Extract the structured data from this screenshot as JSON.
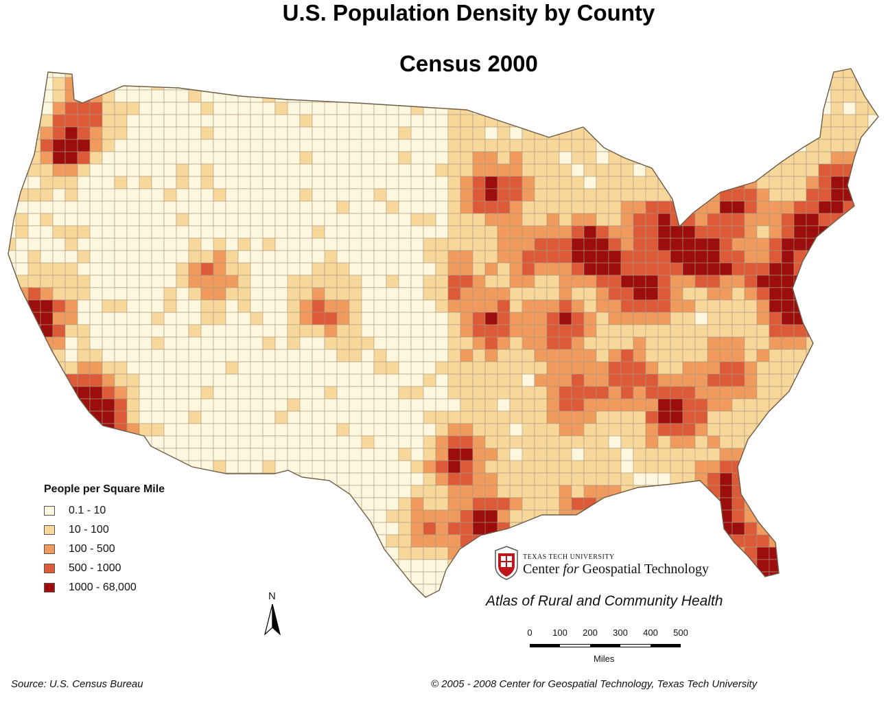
{
  "title": "U.S. Population Density by County",
  "subtitle": "Census 2000",
  "legend": {
    "title": "People per Square Mile",
    "items": [
      {
        "label": "0.1 - 10",
        "color": "#fdf7df"
      },
      {
        "label": "10 - 100",
        "color": "#f7d79a"
      },
      {
        "label": "100 - 500",
        "color": "#f09a5d"
      },
      {
        "label": "500 - 1000",
        "color": "#dc5a37"
      },
      {
        "label": "1000 - 68,000",
        "color": "#9c0e0e"
      }
    ]
  },
  "logo": {
    "university": "TEXAS TECH UNIVERSITY",
    "center_prefix": "Center",
    "center_for": "for",
    "center_suffix": "Geospatial Technology"
  },
  "atlas": "Atlas of Rural and Community Health",
  "scale_bar": {
    "labels": [
      "0",
      "100",
      "200",
      "300",
      "400",
      "500"
    ],
    "unit": "Miles"
  },
  "north_arrow": "N",
  "source": "Source:  U.S. Census Bureau",
  "copyright": "© 2005 - 2008 Center for Geospatial Technology, Texas Tech University",
  "colors": {
    "low": "#fdf7df",
    "mid": "#f7d79a",
    "high": "#f09a5d",
    "very_high": "#dc5a37",
    "max": "#9c0e0e",
    "border": "#a89880"
  }
}
